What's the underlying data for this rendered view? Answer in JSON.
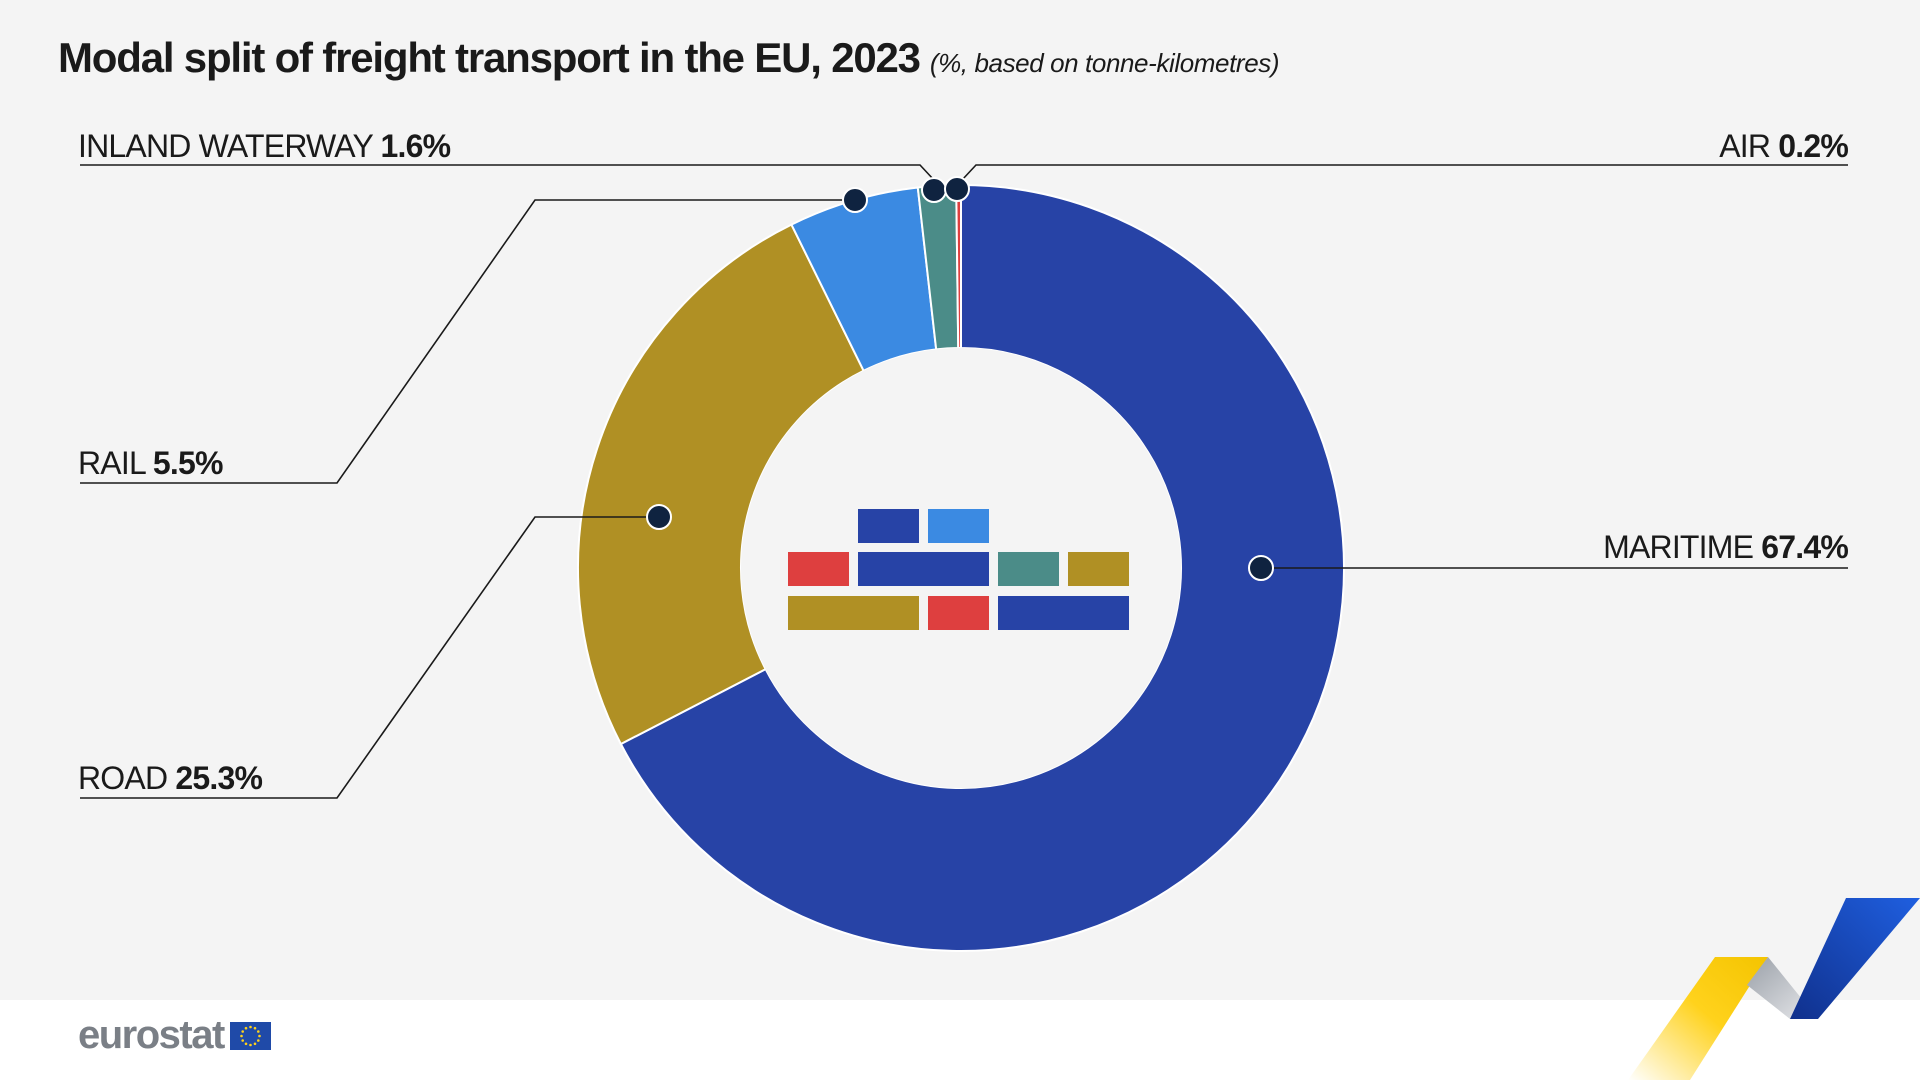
{
  "header": {
    "title": "Modal split of freight transport in the EU, 2023",
    "subtitle": "(%, based on tonne-kilometres)"
  },
  "brand": {
    "logo_text": "eurostat",
    "flag_icon": "eu-flag-icon",
    "transport-icon": "freight-containers-icon"
  },
  "colors": {
    "maritime": "#2743a6",
    "road": "#b09024",
    "rail": "#3b8ae2",
    "inland_waterway": "#4b8c88",
    "air": "#de3f3f",
    "background": "#f4f4f4",
    "marker": "#0f2340"
  },
  "chart_data": {
    "type": "pie",
    "donut": true,
    "title": "Modal split of freight transport in the EU, 2023",
    "subtitle": "(%, based on tonne-kilometres)",
    "unit": "%",
    "slices": [
      {
        "key": "maritime",
        "label": "MARITIME",
        "value": 67.4,
        "value_label": "67.4%",
        "color": "#2743a6"
      },
      {
        "key": "road",
        "label": "ROAD",
        "value": 25.3,
        "value_label": "25.3%",
        "color": "#b09024"
      },
      {
        "key": "rail",
        "label": "RAIL",
        "value": 5.5,
        "value_label": "5.5%",
        "color": "#3b8ae2"
      },
      {
        "key": "inland_waterway",
        "label": "INLAND WATERWAY",
        "value": 1.6,
        "value_label": "1.6%",
        "color": "#4b8c88"
      },
      {
        "key": "air",
        "label": "AIR",
        "value": 0.2,
        "value_label": "0.2%",
        "color": "#de3f3f"
      }
    ]
  }
}
